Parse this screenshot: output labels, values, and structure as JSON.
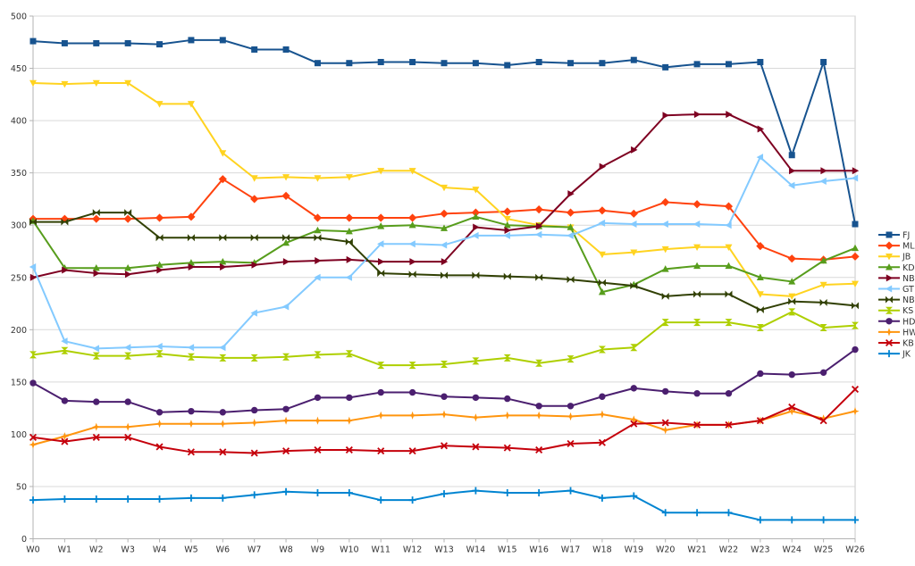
{
  "chart_data": {
    "type": "line",
    "title": "",
    "xlabel": "",
    "ylabel": "",
    "ylim": [
      0,
      500
    ],
    "y_tick_step": 50,
    "y_tick_labels": [
      "0",
      "50",
      "100",
      "150",
      "200",
      "250",
      "300",
      "350",
      "400",
      "450",
      "500"
    ],
    "grid": true,
    "legend_position": "right",
    "categories": [
      "W0",
      "W1",
      "W2",
      "W3",
      "W4",
      "W5",
      "W6",
      "W7",
      "W8",
      "W9",
      "W10",
      "W11",
      "W12",
      "W13",
      "W14",
      "W15",
      "W16",
      "W17",
      "W18",
      "W19",
      "W20",
      "W21",
      "W22",
      "W23",
      "W24",
      "W25",
      "W26"
    ],
    "series": [
      {
        "name": "FJ",
        "color": "#17538f",
        "marker": "square",
        "values": [
          476,
          474,
          474,
          474,
          473,
          477,
          477,
          468,
          468,
          455,
          455,
          456,
          456,
          455,
          455,
          453,
          456,
          455,
          455,
          458,
          451,
          454,
          454,
          456,
          367,
          456,
          301
        ]
      },
      {
        "name": "ML",
        "color": "#ff420e",
        "marker": "diamond",
        "values": [
          306,
          306,
          306,
          306,
          307,
          308,
          344,
          325,
          328,
          307,
          307,
          307,
          307,
          311,
          312,
          313,
          315,
          312,
          314,
          311,
          322,
          320,
          318,
          280,
          268,
          267,
          270
        ]
      },
      {
        "name": "JB",
        "color": "#ffd320",
        "marker": "triangle-down",
        "values": [
          436,
          435,
          436,
          436,
          416,
          416,
          369,
          345,
          346,
          345,
          346,
          352,
          352,
          336,
          334,
          306,
          300,
          298,
          272,
          274,
          277,
          279,
          279,
          234,
          232,
          243,
          244
        ]
      },
      {
        "name": "KD",
        "color": "#579d1c",
        "marker": "triangle-up",
        "values": [
          304,
          259,
          259,
          259,
          262,
          264,
          265,
          264,
          283,
          295,
          294,
          299,
          300,
          297,
          308,
          300,
          299,
          298,
          236,
          243,
          258,
          261,
          261,
          250,
          246,
          266,
          278
        ]
      },
      {
        "name": "NB",
        "color": "#7e0021",
        "marker": "triangle-right",
        "values": [
          250,
          257,
          254,
          253,
          257,
          260,
          260,
          262,
          265,
          266,
          267,
          265,
          265,
          265,
          298,
          295,
          299,
          330,
          356,
          372,
          405,
          406,
          406,
          392,
          352,
          352,
          352
        ]
      },
      {
        "name": "GT",
        "color": "#83caff",
        "marker": "triangle-left",
        "values": [
          260,
          189,
          182,
          183,
          184,
          183,
          183,
          216,
          222,
          250,
          250,
          282,
          282,
          281,
          290,
          290,
          291,
          290,
          302,
          301,
          301,
          301,
          300,
          365,
          338,
          342,
          345
        ]
      },
      {
        "name": "NB",
        "color": "#314004",
        "marker": "bowtie",
        "values": [
          303,
          303,
          312,
          312,
          288,
          288,
          288,
          288,
          288,
          288,
          284,
          254,
          253,
          252,
          252,
          251,
          250,
          248,
          245,
          242,
          232,
          234,
          234,
          219,
          227,
          226,
          223
        ]
      },
      {
        "name": "KS",
        "color": "#aecf00",
        "marker": "sandglass",
        "values": [
          176,
          180,
          175,
          175,
          177,
          174,
          173,
          173,
          174,
          176,
          177,
          166,
          166,
          167,
          170,
          173,
          168,
          172,
          181,
          183,
          207,
          207,
          207,
          202,
          217,
          202,
          204
        ]
      },
      {
        "name": "HD",
        "color": "#4b1f6f",
        "marker": "circle",
        "values": [
          149,
          132,
          131,
          131,
          121,
          122,
          121,
          123,
          124,
          135,
          135,
          140,
          140,
          136,
          135,
          134,
          127,
          127,
          136,
          144,
          141,
          139,
          139,
          158,
          157,
          159,
          181
        ]
      },
      {
        "name": "HW",
        "color": "#ff950e",
        "marker": "star4",
        "values": [
          90,
          98,
          107,
          107,
          110,
          110,
          110,
          111,
          113,
          113,
          113,
          118,
          118,
          119,
          116,
          118,
          118,
          117,
          119,
          114,
          104,
          109,
          109,
          113,
          122,
          115,
          122
        ]
      },
      {
        "name": "KB",
        "color": "#c5000b",
        "marker": "x",
        "values": [
          97,
          93,
          97,
          97,
          88,
          83,
          83,
          82,
          84,
          85,
          85,
          84,
          84,
          89,
          88,
          87,
          85,
          91,
          92,
          110,
          111,
          109,
          109,
          113,
          126,
          113,
          143
        ]
      },
      {
        "name": "JK",
        "color": "#0084d1",
        "marker": "plus",
        "values": [
          37,
          38,
          38,
          38,
          38,
          39,
          39,
          42,
          45,
          44,
          44,
          37,
          37,
          43,
          46,
          44,
          44,
          46,
          39,
          41,
          25,
          25,
          25,
          18,
          18,
          18,
          18
        ]
      }
    ]
  },
  "style_colors": {
    "background": "#ffffff",
    "gridline": "#d9d9d9",
    "plot_border": "#c8c8c8",
    "axis_line": "#b3b3b3",
    "label_text": "#333333"
  }
}
